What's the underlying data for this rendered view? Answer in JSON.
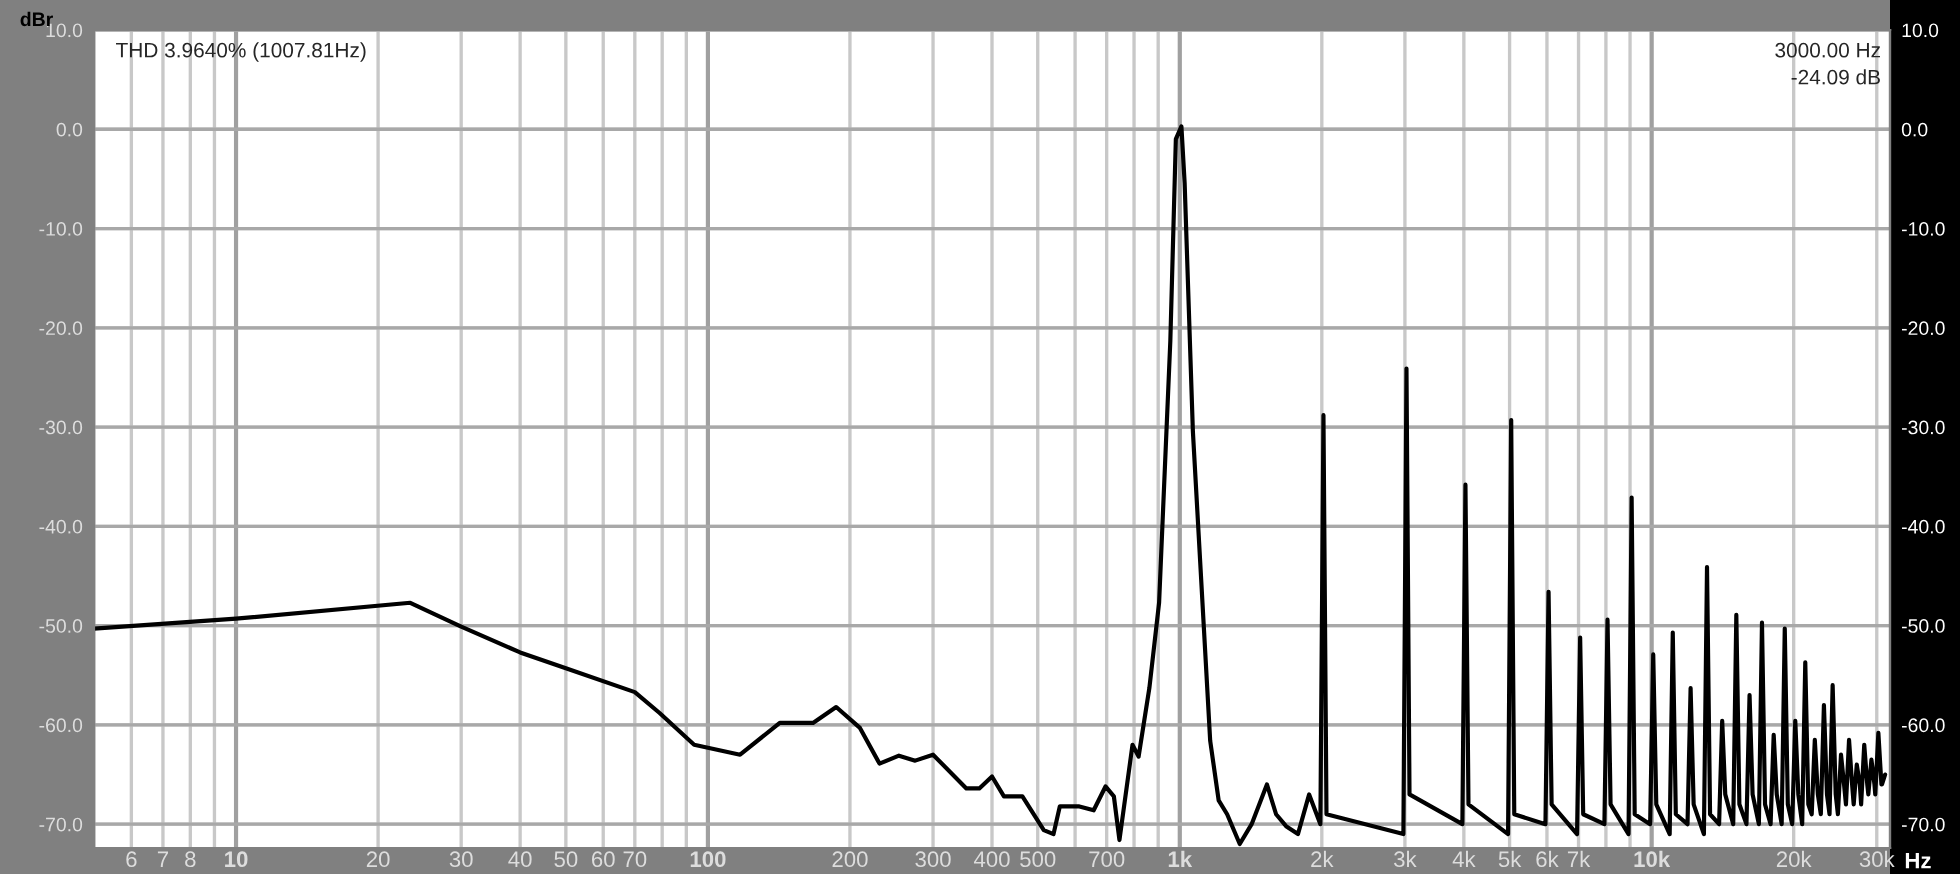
{
  "chart_data": {
    "type": "line",
    "xlabel": "Hz",
    "ylabel": "dBr",
    "annotations": [
      "THD 3.9640% (1007.81Hz)",
      "3000.00 Hz",
      "-24.09 dB"
    ],
    "log": "x",
    "grid": true,
    "legend": false,
    "marker": "none",
    "line_style": "solid",
    "xlim": [
      5,
      32000
    ],
    "ylim": [
      -72.4,
      10
    ],
    "xticks": [
      {
        "value": 5,
        "label": null
      },
      {
        "value": 6,
        "label": "6"
      },
      {
        "value": 7,
        "label": "7"
      },
      {
        "value": 8,
        "label": "8"
      },
      {
        "value": 9,
        "label": null
      },
      10,
      20,
      30,
      40,
      50,
      60,
      70,
      {
        "value": 80,
        "label": null
      },
      {
        "value": 90,
        "label": null
      },
      100,
      200,
      300,
      400,
      500,
      {
        "value": 600,
        "label": null
      },
      700,
      {
        "value": 800,
        "label": null
      },
      {
        "value": 900,
        "label": null
      },
      {
        "value": 1000,
        "label": "1k"
      },
      {
        "value": 2000,
        "label": "2k"
      },
      {
        "value": 3000,
        "label": "3k"
      },
      {
        "value": 4000,
        "label": "4k"
      },
      {
        "value": 5000,
        "label": "5k"
      },
      {
        "value": 6000,
        "label": "6k"
      },
      {
        "value": 7000,
        "label": "7k"
      },
      {
        "value": 8000,
        "label": null
      },
      {
        "value": 9000,
        "label": null
      },
      {
        "value": 10000,
        "label": "10k"
      },
      {
        "value": 20000,
        "label": "20k"
      },
      {
        "value": 30000,
        "label": "30k"
      }
    ],
    "yticks": [
      {
        "value": 10,
        "label": "10.0"
      },
      {
        "value": 0,
        "label": "0.0"
      },
      {
        "value": -10,
        "label": "-10.0"
      },
      {
        "value": -20,
        "label": "-20.0"
      },
      {
        "value": -30,
        "label": "-30.0"
      },
      {
        "value": -40,
        "label": "-40.0"
      },
      {
        "value": -50,
        "label": "-50.0"
      },
      {
        "value": -60,
        "label": "-60.0"
      },
      {
        "value": -70,
        "label": "-70.0"
      }
    ],
    "y2lim": [
      -72.4,
      10
    ],
    "y2ticks": [
      {
        "value": 10,
        "label": "10.0"
      },
      {
        "value": 0,
        "label": "0.0"
      },
      {
        "value": -10,
        "label": "-10.0"
      },
      {
        "value": -20,
        "label": "-20.0"
      },
      {
        "value": -30,
        "label": "-30.0"
      },
      {
        "value": -40,
        "label": "-40.0"
      },
      {
        "value": -50,
        "label": "-50.0"
      },
      {
        "value": -60,
        "label": "-60.0"
      },
      {
        "value": -70,
        "label": "-70.0"
      }
    ],
    "series": [
      {
        "color": "#000000",
        "x": [
          5,
          10,
          23.4,
          30,
          40,
          50,
          70,
          79,
          93.5,
          117,
          142,
          167,
          187,
          210,
          231,
          254,
          275,
          300,
          353,
          376,
          400,
          424,
          464,
          515,
          540,
          557,
          610,
          657,
          696,
          725,
          745,
          794,
          818,
          862,
          904,
          955,
          981,
          1008,
          1024,
          1066,
          1160,
          1209,
          1260,
          1340,
          1420,
          1530,
          1600,
          1680,
          1780,
          1880,
          1986,
          2016,
          2046,
          2978,
          3023,
          3068,
          3971,
          4031,
          4091,
          4963,
          5039,
          5115,
          5956,
          6047,
          6138,
          6949,
          7055,
          7161,
          7942,
          8063,
          8184,
          8934,
          9070,
          9206,
          9927,
          10078,
          10229,
          10920,
          11086,
          11252,
          11913,
          12094,
          12275,
          12905,
          13102,
          13299,
          13898,
          14110,
          14322,
          14890,
          15117,
          15344,
          15883,
          16125,
          16367,
          16876,
          17133,
          17390,
          17869,
          18141,
          18413,
          18861,
          19148,
          19435,
          19854,
          20156,
          20458,
          20847,
          21164,
          21481,
          21839,
          22172,
          22505,
          22832,
          23180,
          23528,
          23825,
          24188,
          24551,
          24817,
          25195,
          25573,
          25810,
          26203,
          26596,
          26803,
          27211,
          27619,
          27796,
          28219,
          28642,
          28789,
          29227,
          29665,
          29780,
          30234,
          30688,
          30773,
          31242
        ],
        "values": [
          -50.3,
          -49.3,
          -47.7,
          -50.1,
          -52.7,
          -54.3,
          -56.7,
          -58.8,
          -62.0,
          -63.0,
          -59.8,
          -59.8,
          -58.2,
          -60.3,
          -63.9,
          -63.1,
          -63.6,
          -63.0,
          -66.4,
          -66.4,
          -65.2,
          -67.2,
          -67.2,
          -70.6,
          -71.0,
          -68.2,
          -68.2,
          -68.6,
          -66.2,
          -67.2,
          -71.6,
          -62.0,
          -63.2,
          -56.3,
          -47.7,
          -21.3,
          -1.0,
          0.3,
          -5.4,
          -30.4,
          -61.6,
          -67.6,
          -69,
          -72,
          -70,
          -66,
          -69,
          -70.2,
          -71,
          -67,
          -70,
          -28.8,
          -69,
          -71,
          -24.1,
          -67,
          -70,
          -35.8,
          -68,
          -71,
          -29.3,
          -69,
          -70,
          -46.6,
          -68,
          -71,
          -51.2,
          -69,
          -70,
          -49.4,
          -68,
          -71,
          -37.1,
          -69,
          -70,
          -52.9,
          -68,
          -71,
          -50.7,
          -69,
          -70,
          -56.3,
          -68,
          -71,
          -44.1,
          -69,
          -70,
          -59.6,
          -67,
          -70,
          -48.9,
          -68,
          -70,
          -57.0,
          -67,
          -70,
          -49.7,
          -68,
          -70,
          -61.0,
          -67,
          -70,
          -50.3,
          -68,
          -70,
          -59.6,
          -67,
          -70,
          -53.7,
          -68,
          -69,
          -61.5,
          -67,
          -69,
          -58.0,
          -67,
          -69,
          -56.0,
          -67,
          -69,
          -63.0,
          -66,
          -68,
          -61.5,
          -66,
          -68,
          -64.0,
          -66,
          -68,
          -62.0,
          -66,
          -67,
          -63.5,
          -66,
          -67,
          -60.8,
          -66,
          -66,
          -65.0
        ]
      }
    ]
  }
}
